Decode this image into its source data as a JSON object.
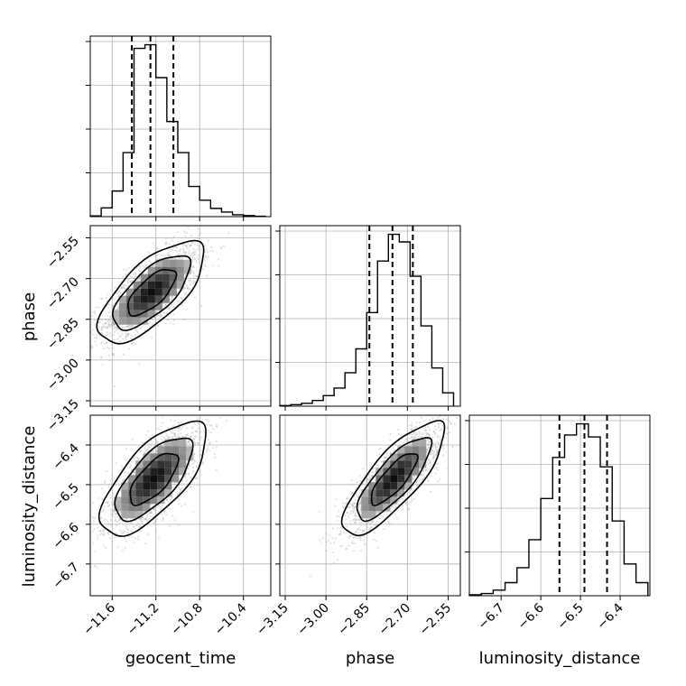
{
  "chart_data": {
    "type": "corner",
    "parameters": [
      "geocent_time",
      "phase",
      "luminosity_distance"
    ],
    "ranges": {
      "geocent_time": [
        -11.8,
        -10.15
      ],
      "phase": [
        -3.17,
        -2.505
      ],
      "luminosity_distance": [
        -6.78,
        -6.325
      ]
    },
    "ticks": {
      "geocent_time": [
        -11.6,
        -11.2,
        -10.8,
        -10.4
      ],
      "phase": [
        -3.15,
        -3.0,
        -2.85,
        -2.7,
        -2.55
      ],
      "luminosity_distance": [
        -6.7,
        -6.6,
        -6.5,
        -6.4
      ]
    },
    "tick_labels": {
      "geocent_time": [
        "−11.6",
        "−11.2",
        "−10.8",
        "−10.4"
      ],
      "phase": [
        "−3.15",
        "−3.00",
        "−2.85",
        "−2.70",
        "−2.55"
      ],
      "luminosity_distance": [
        "−6.7",
        "−6.6",
        "−6.5",
        "−6.4"
      ]
    },
    "quantiles": {
      "geocent_time": [
        -11.42,
        -11.25,
        -11.04
      ],
      "phase": [
        -2.84,
        -2.755,
        -2.68
      ],
      "luminosity_distance": [
        -6.553,
        -6.49,
        -6.433
      ]
    },
    "histograms": {
      "geocent_time": {
        "edges": [
          -11.8,
          -11.7,
          -11.6,
          -11.5,
          -11.4,
          -11.3,
          -11.2,
          -11.1,
          -11.0,
          -10.9,
          -10.8,
          -10.7,
          -10.6,
          -10.5,
          -10.4,
          -10.3,
          -10.2
        ],
        "counts": [
          4,
          48,
          140,
          350,
          920,
          940,
          760,
          520,
          350,
          165,
          90,
          45,
          25,
          10,
          6,
          2
        ]
      },
      "phase": {
        "edges": [
          -3.17,
          -3.13,
          -3.09,
          -3.05,
          -3.01,
          -2.97,
          -2.93,
          -2.89,
          -2.85,
          -2.81,
          -2.77,
          -2.73,
          -2.69,
          -2.65,
          -2.61,
          -2.57,
          -2.53
        ],
        "counts": [
          3,
          8,
          15,
          30,
          55,
          95,
          175,
          300,
          490,
          760,
          900,
          860,
          680,
          420,
          200,
          70
        ]
      },
      "luminosity_distance": {
        "edges": [
          -6.78,
          -6.75,
          -6.72,
          -6.69,
          -6.66,
          -6.63,
          -6.6,
          -6.57,
          -6.54,
          -6.51,
          -6.48,
          -6.45,
          -6.42,
          -6.39,
          -6.36,
          -6.33
        ],
        "counts": [
          5,
          12,
          30,
          70,
          150,
          300,
          520,
          740,
          860,
          920,
          850,
          690,
          400,
          170,
          70
        ]
      }
    },
    "pairs": [
      {
        "x": "geocent_time",
        "y": "phase",
        "mean": [
          -11.24,
          -2.75
        ],
        "sd": [
          0.22,
          0.085
        ],
        "rho": 0.7
      },
      {
        "x": "geocent_time",
        "y": "luminosity_distance",
        "mean": [
          -11.22,
          -6.485
        ],
        "sd": [
          0.22,
          0.065
        ],
        "rho": 0.7
      },
      {
        "x": "phase",
        "y": "luminosity_distance",
        "mean": [
          -2.75,
          -6.485
        ],
        "sd": [
          0.085,
          0.065
        ],
        "rho": 0.8
      }
    ],
    "contour_levels_sigma": [
      1.0,
      1.6,
      2.2
    ],
    "colors": {
      "line": "#000000",
      "scatter": "#aaaaaa",
      "grid": "#b0b0b0"
    },
    "grid": true
  }
}
